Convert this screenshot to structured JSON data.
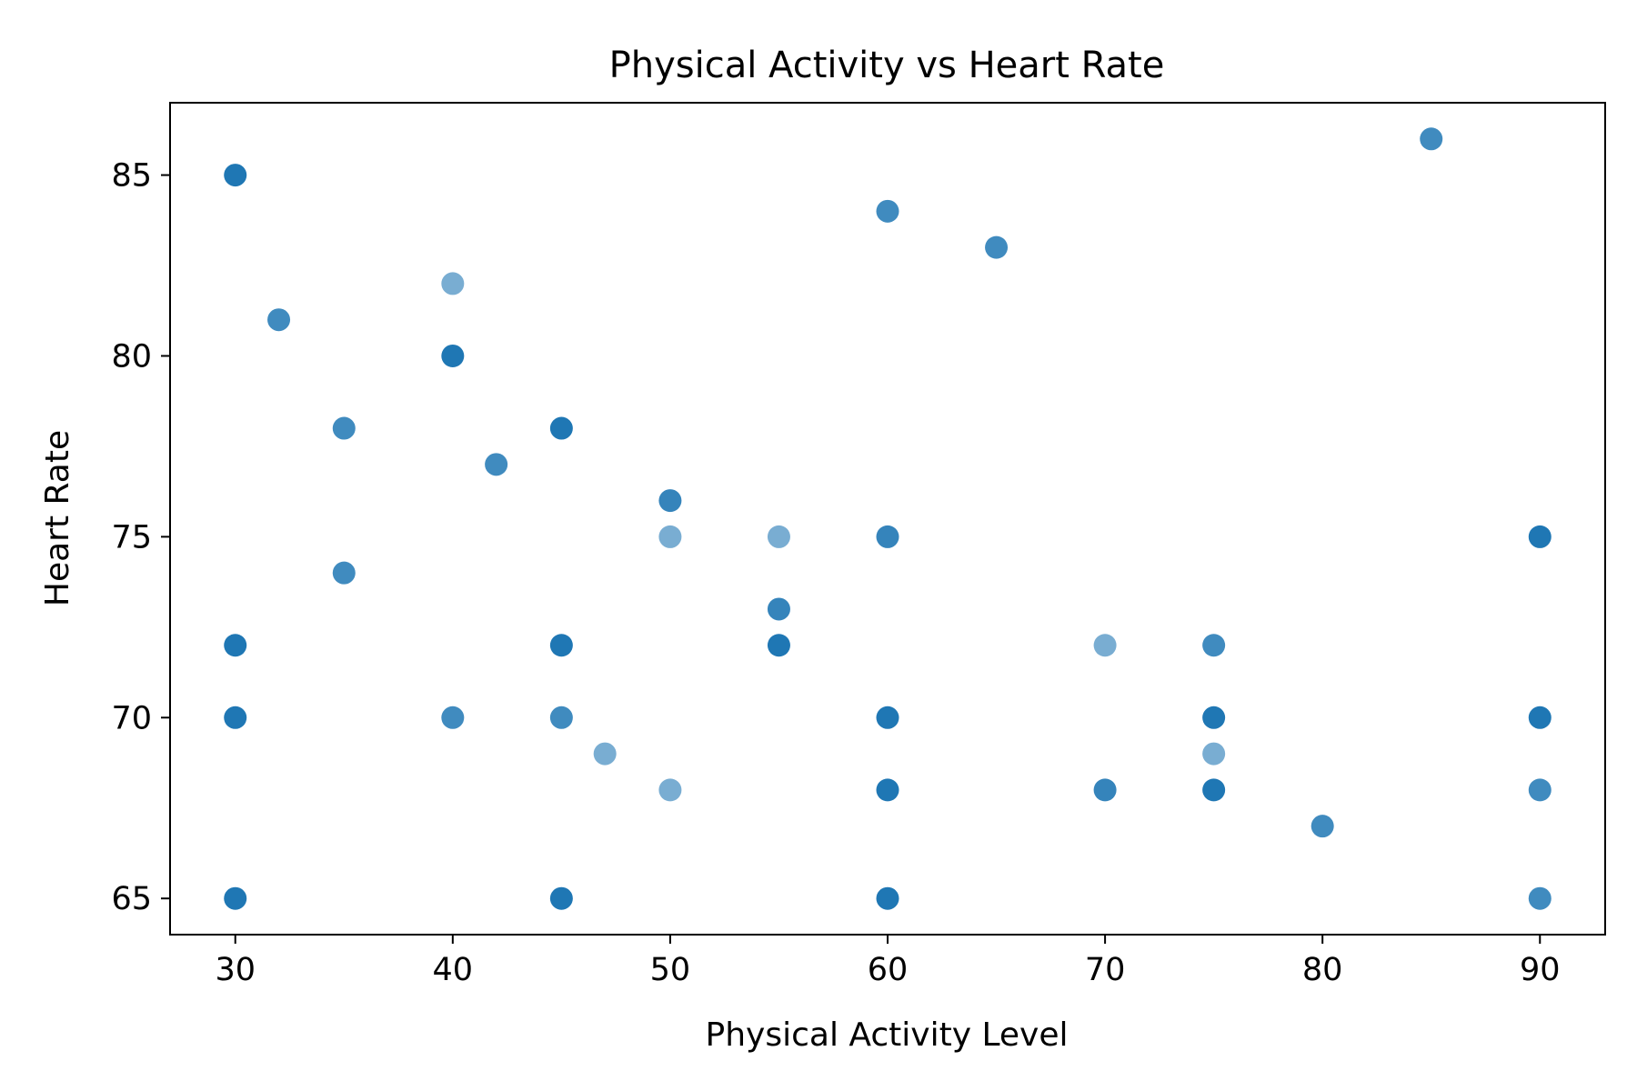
{
  "chart_data": {
    "type": "scatter",
    "title": "Physical Activity vs Heart Rate",
    "xlabel": "Physical Activity Level",
    "ylabel": "Heart Rate",
    "xlim": [
      27,
      93
    ],
    "ylim": [
      64,
      87
    ],
    "x_ticks": [
      30,
      40,
      50,
      60,
      70,
      80,
      90
    ],
    "y_ticks": [
      65,
      70,
      75,
      80,
      85
    ],
    "grid": false,
    "legend": "none",
    "color": "#1f77b4",
    "points": [
      {
        "x": 30,
        "y": 85,
        "alpha": 1.0
      },
      {
        "x": 30,
        "y": 72,
        "alpha": 1.0
      },
      {
        "x": 30,
        "y": 70,
        "alpha": 1.0
      },
      {
        "x": 30,
        "y": 65,
        "alpha": 1.0
      },
      {
        "x": 32,
        "y": 81,
        "alpha": 0.85
      },
      {
        "x": 35,
        "y": 78,
        "alpha": 0.85
      },
      {
        "x": 35,
        "y": 74,
        "alpha": 0.85
      },
      {
        "x": 40,
        "y": 82,
        "alpha": 0.6
      },
      {
        "x": 40,
        "y": 80,
        "alpha": 1.0
      },
      {
        "x": 40,
        "y": 70,
        "alpha": 0.85
      },
      {
        "x": 42,
        "y": 77,
        "alpha": 0.85
      },
      {
        "x": 45,
        "y": 78,
        "alpha": 1.0
      },
      {
        "x": 45,
        "y": 72,
        "alpha": 1.0
      },
      {
        "x": 45,
        "y": 70,
        "alpha": 0.85
      },
      {
        "x": 45,
        "y": 65,
        "alpha": 1.0
      },
      {
        "x": 47,
        "y": 69,
        "alpha": 0.6
      },
      {
        "x": 50,
        "y": 76,
        "alpha": 0.9
      },
      {
        "x": 50,
        "y": 75,
        "alpha": 0.6
      },
      {
        "x": 50,
        "y": 68,
        "alpha": 0.6
      },
      {
        "x": 55,
        "y": 75,
        "alpha": 0.6
      },
      {
        "x": 55,
        "y": 73,
        "alpha": 0.9
      },
      {
        "x": 55,
        "y": 72,
        "alpha": 1.0
      },
      {
        "x": 60,
        "y": 84,
        "alpha": 0.85
      },
      {
        "x": 60,
        "y": 75,
        "alpha": 0.9
      },
      {
        "x": 60,
        "y": 70,
        "alpha": 1.0
      },
      {
        "x": 60,
        "y": 68,
        "alpha": 1.0
      },
      {
        "x": 60,
        "y": 65,
        "alpha": 1.0
      },
      {
        "x": 65,
        "y": 83,
        "alpha": 0.85
      },
      {
        "x": 70,
        "y": 72,
        "alpha": 0.6
      },
      {
        "x": 70,
        "y": 68,
        "alpha": 0.9
      },
      {
        "x": 75,
        "y": 72,
        "alpha": 0.85
      },
      {
        "x": 75,
        "y": 70,
        "alpha": 1.0
      },
      {
        "x": 75,
        "y": 69,
        "alpha": 0.6
      },
      {
        "x": 75,
        "y": 68,
        "alpha": 1.0
      },
      {
        "x": 80,
        "y": 67,
        "alpha": 0.85
      },
      {
        "x": 85,
        "y": 86,
        "alpha": 0.85
      },
      {
        "x": 90,
        "y": 75,
        "alpha": 1.0
      },
      {
        "x": 90,
        "y": 70,
        "alpha": 1.0
      },
      {
        "x": 90,
        "y": 68,
        "alpha": 0.85
      },
      {
        "x": 90,
        "y": 65,
        "alpha": 0.85
      }
    ]
  }
}
